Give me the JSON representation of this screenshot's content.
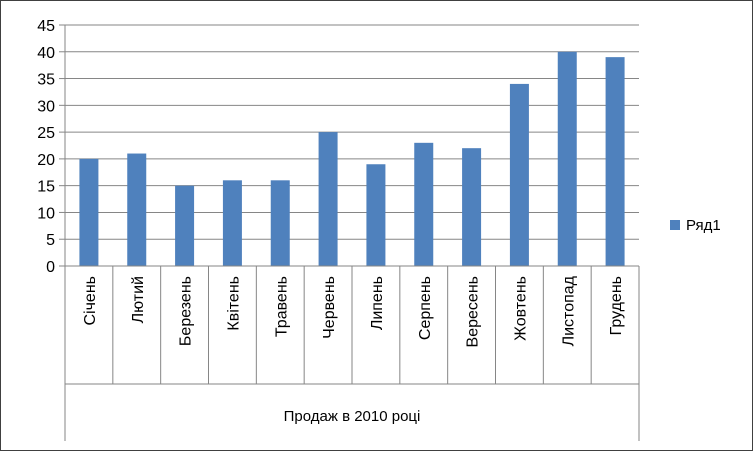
{
  "chart_data": {
    "type": "bar",
    "categories": [
      "Січень",
      "Лютий",
      "Березень",
      "Квітень",
      "Травень",
      "Червень",
      "Липень",
      "Серпень",
      "Вересень",
      "Жовтень",
      "Листопад",
      "Грудень"
    ],
    "series": [
      {
        "name": "Ряд1",
        "values": [
          20,
          21,
          15,
          16,
          16,
          25,
          19,
          23,
          22,
          34,
          40,
          39
        ]
      }
    ],
    "xlabel": "Продаж в 2010 році",
    "ylabel": "",
    "ylim": [
      0,
      45
    ],
    "yticks": [
      "0",
      "5",
      "10",
      "15",
      "20",
      "25",
      "30",
      "35",
      "40",
      "45"
    ],
    "grid": true,
    "legend_position": "right",
    "colors": {
      "bar": "#4f81bd",
      "grid": "#868686",
      "axis": "#868686",
      "frame": "#404040"
    }
  }
}
